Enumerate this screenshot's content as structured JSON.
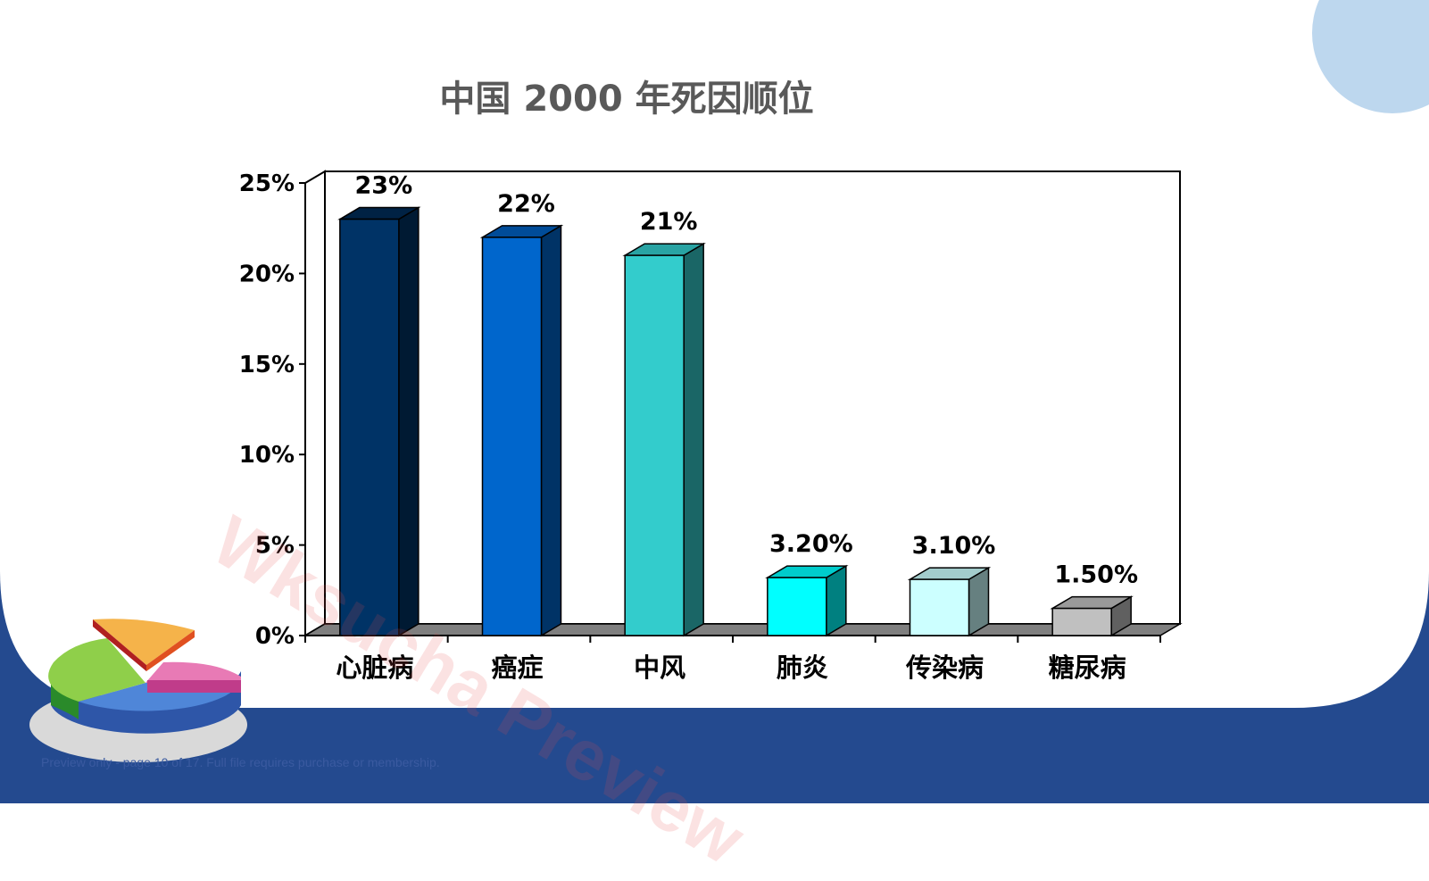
{
  "slide": {
    "watermark": "Wksucha Preview",
    "footer_note": "Preview only - page 10 of 17. Full file requires purchase or membership."
  },
  "colors": {
    "background": "#ffffff",
    "band": "#244a8f",
    "corner_circle": "#bdd7ee",
    "floor": "#7f7f7f",
    "title": "#595959"
  },
  "decorations": {
    "pie_icon": "pie-chart-icon"
  },
  "chart_data": {
    "type": "bar",
    "title": "中国 2000 年死因顺位",
    "xlabel": "",
    "ylabel": "",
    "categories": [
      "心脏病",
      "癌症",
      "中风",
      "肺炎",
      "传染病",
      "糖尿病"
    ],
    "values": [
      23,
      22,
      21,
      3.2,
      3.1,
      1.5
    ],
    "data_labels": [
      "23%",
      "22%",
      "21%",
      "3.20%",
      "3.10%",
      "1.50%"
    ],
    "ylim": [
      0,
      25
    ],
    "yticks": [
      0,
      5,
      10,
      15,
      20,
      25
    ],
    "ytick_labels": [
      "0%",
      "5%",
      "10%",
      "15%",
      "20%",
      "25%"
    ],
    "grid": false,
    "legend": "none",
    "bar_colors": [
      {
        "front": "#003366",
        "side": "#001a33",
        "top": "#002244"
      },
      {
        "front": "#0066cc",
        "side": "#003366",
        "top": "#004c99"
      },
      {
        "front": "#33cccc",
        "side": "#1a6666",
        "top": "#29a3a3"
      },
      {
        "front": "#00ffff",
        "side": "#008080",
        "top": "#00cccc"
      },
      {
        "front": "#ccffff",
        "side": "#668080",
        "top": "#a3cccc"
      },
      {
        "front": "#c0c0c0",
        "side": "#606060",
        "top": "#9a9a9a"
      }
    ]
  }
}
